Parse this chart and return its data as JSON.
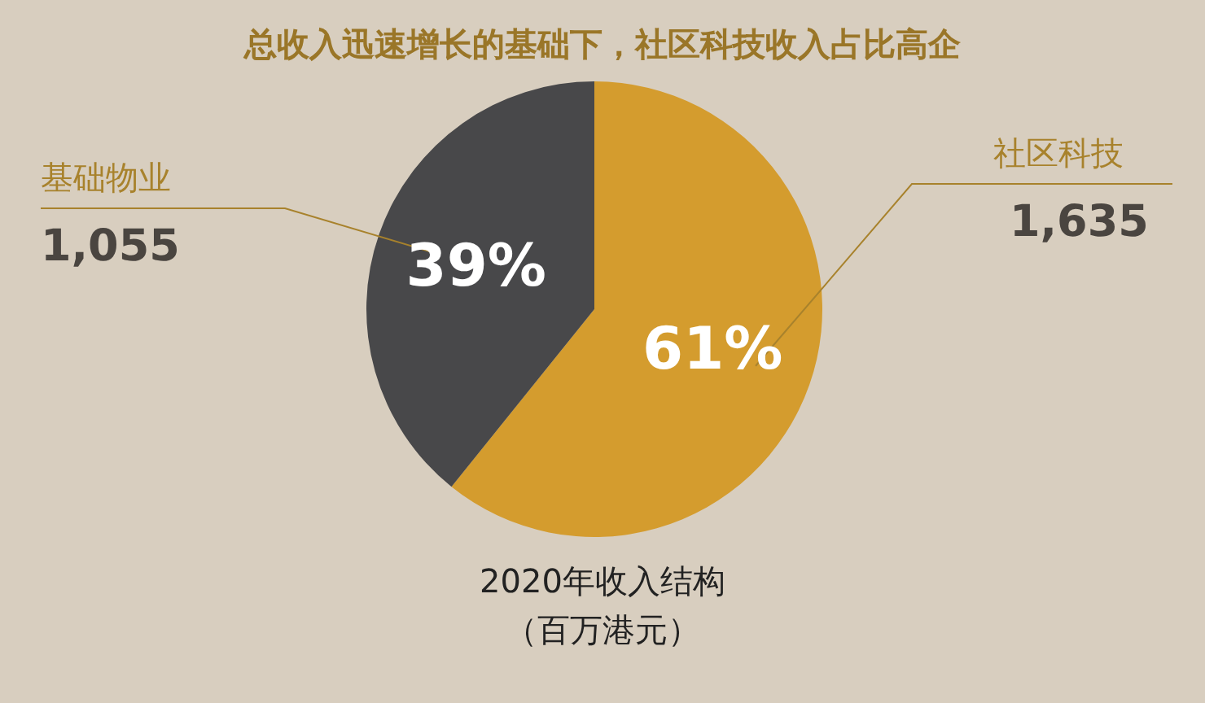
{
  "chart_data": {
    "type": "pie",
    "title": "总收入迅速增长的基础下，社区科技收入占比高企",
    "categories": [
      "社区科技",
      "基础物业"
    ],
    "values": [
      1635,
      1055
    ],
    "value_labels": [
      "1,635",
      "1,055"
    ],
    "colors": [
      "#d49c2e",
      "#48484a"
    ],
    "annotations": [
      "61%",
      "39%",
      "2020年收入结构",
      "（百万港元）"
    ]
  }
}
